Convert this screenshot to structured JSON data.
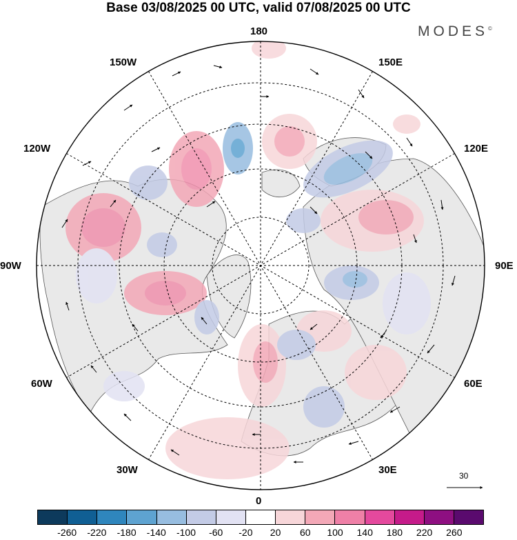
{
  "title": "Base 03/08/2025 00 UTC, valid 07/08/2025 00 UTC",
  "brand": "MODES",
  "brand_mark": "©",
  "longitude_labels": {
    "top": "180",
    "bottom": "0",
    "left": "90W",
    "right": "90E",
    "upper_left_1": "150W",
    "upper_left_2": "120W",
    "upper_right_1": "150E",
    "upper_right_2": "120E",
    "lower_left_1": "60W",
    "lower_left_2": "30W",
    "lower_right_1": "60E",
    "lower_right_2": "30E"
  },
  "reference_vector": {
    "label": "30"
  },
  "colorbar": {
    "colors": [
      "#0d3a5c",
      "#105f94",
      "#2f86bd",
      "#5ea3d1",
      "#97bde0",
      "#c3cbe6",
      "#e2e2f3",
      "#ffffff",
      "#f7d6d9",
      "#f3a8b7",
      "#ef80a7",
      "#e4499d",
      "#c51b8a",
      "#8e0f81",
      "#5a0a6e"
    ],
    "ticks": [
      "-260",
      "-220",
      "-180",
      "-140",
      "-100",
      "-60",
      "-20",
      "20",
      "60",
      "100",
      "140",
      "180",
      "220",
      "260"
    ]
  },
  "chart_data": {
    "type": "polar-stereographic map",
    "description_fields": "field anomaly shading with wind vectors",
    "title": "Base 03/08/2025 00 UTC, valid 07/08/2025 00 UTC",
    "contour_levels": [
      -260,
      -220,
      -180,
      -140,
      -100,
      -60,
      -20,
      20,
      60,
      100,
      140,
      180,
      220,
      260
    ],
    "meridian_labels": [
      "180",
      "150E",
      "120E",
      "90E",
      "60E",
      "30E",
      "0",
      "30W",
      "60W",
      "90W",
      "120W",
      "150W"
    ],
    "reference_vector": 30
  }
}
